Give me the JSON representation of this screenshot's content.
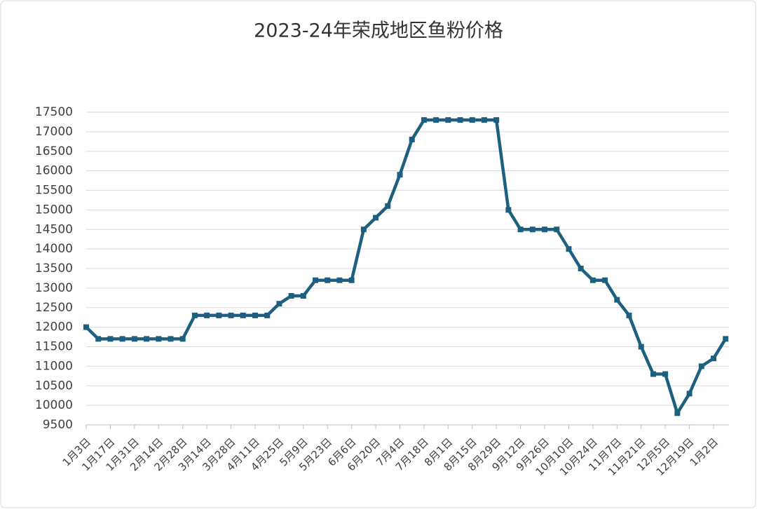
{
  "chart_data": {
    "type": "line",
    "title": "2023-24年荣成地区鱼粉价格",
    "categories": [
      "1月3日",
      null,
      "1月17日",
      null,
      "1月31日",
      null,
      "2月14日",
      null,
      "2月28日",
      null,
      "3月14日",
      null,
      "3月28日",
      null,
      "4月11日",
      null,
      "4月25日",
      null,
      "5月9日",
      null,
      "5月23日",
      null,
      "6月6日",
      null,
      "6月20日",
      null,
      "7月4日",
      null,
      "7月18日",
      null,
      "8月1日",
      null,
      "8月15日",
      null,
      "8月29日",
      null,
      "9月12日",
      null,
      "9月26日",
      null,
      "10月10日",
      null,
      "10月24日",
      null,
      "11月7日",
      null,
      "11月21日",
      null,
      "12月5日",
      null,
      "12月19日",
      null,
      "1月2日",
      null
    ],
    "values": [
      12000,
      11700,
      11700,
      11700,
      11700,
      11700,
      11700,
      11700,
      11700,
      12300,
      12300,
      12300,
      12300,
      12300,
      12300,
      12300,
      12600,
      12800,
      12800,
      13200,
      13200,
      13200,
      13200,
      14500,
      14800,
      15100,
      15900,
      16800,
      17300,
      17300,
      17300,
      17300,
      17300,
      17300,
      17300,
      15000,
      14500,
      14500,
      14500,
      14500,
      14000,
      13500,
      13200,
      13200,
      12700,
      12300,
      11500,
      10800,
      10800,
      9800,
      10300,
      11000,
      11200,
      11700
    ],
    "color": "#1d5f7e",
    "ylim": [
      9500,
      17500
    ],
    "yticks": [
      9500,
      10000,
      10500,
      11000,
      11500,
      12000,
      12500,
      13000,
      13500,
      14000,
      14500,
      15000,
      15500,
      16000,
      16500,
      17000,
      17500
    ],
    "grid": true
  }
}
